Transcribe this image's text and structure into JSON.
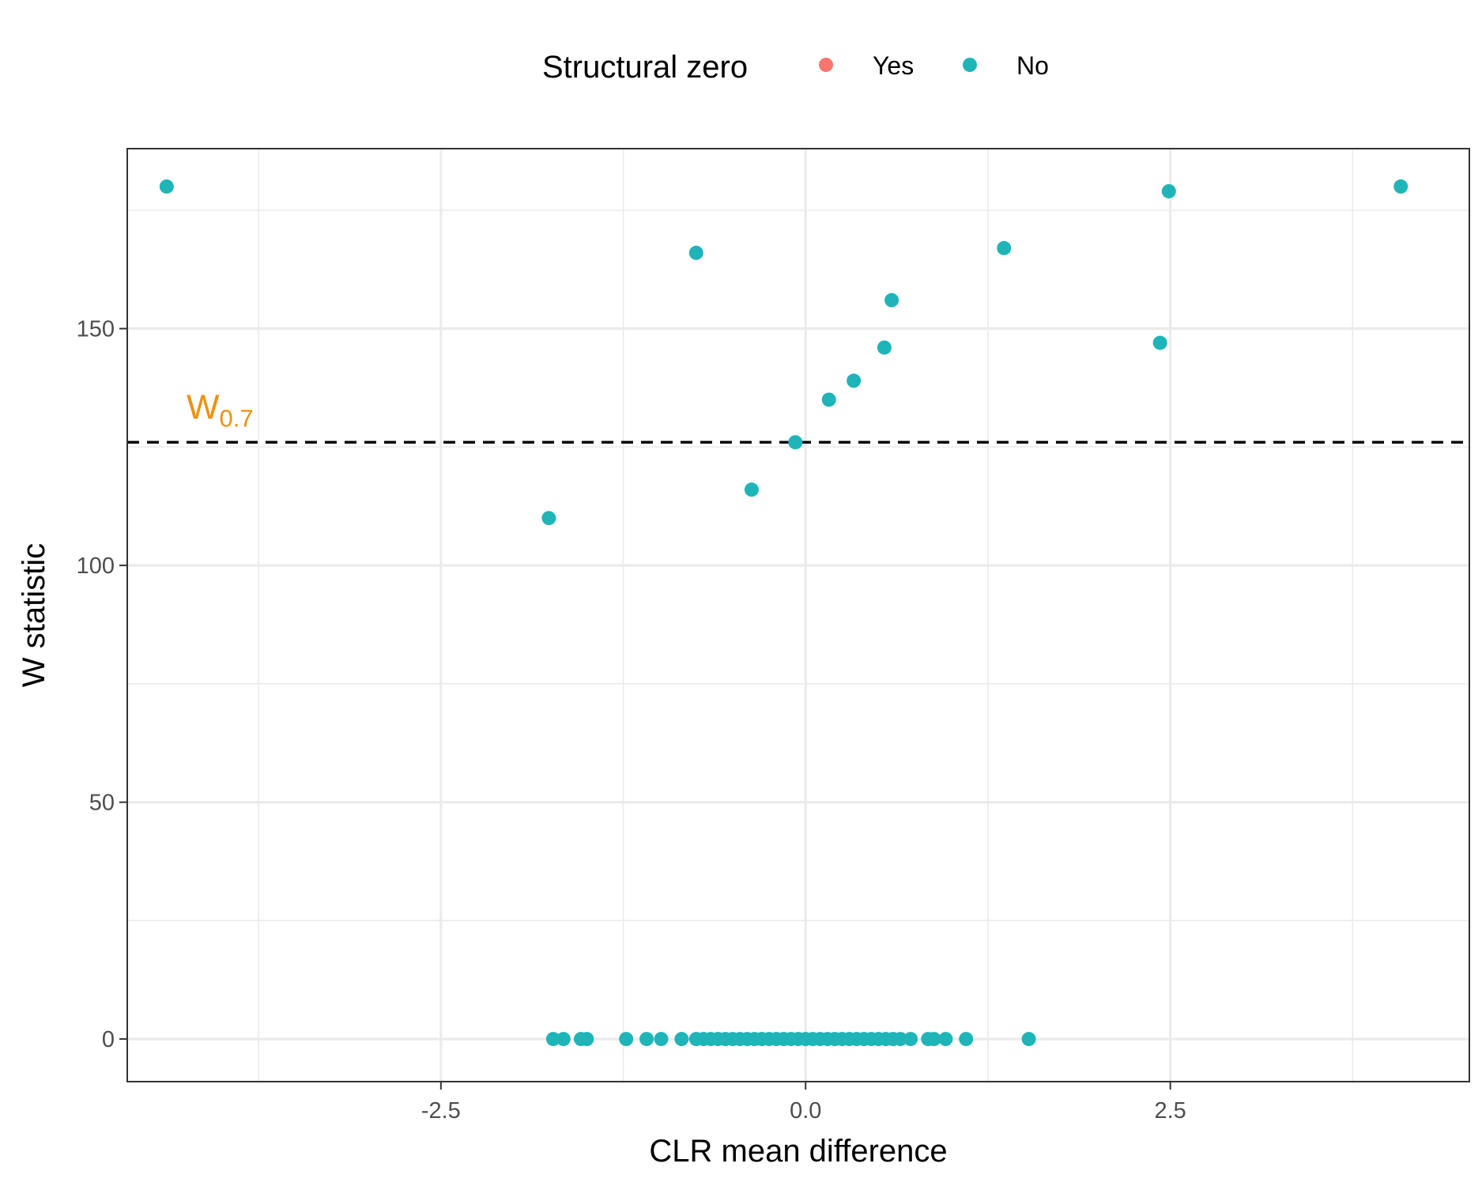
{
  "chart_data": {
    "type": "scatter",
    "title": "",
    "xlabel": "CLR mean difference",
    "ylabel": "W statistic",
    "xlim": [
      -4.65,
      4.55
    ],
    "ylim": [
      -9,
      188
    ],
    "x_ticks": [
      -2.5,
      0.0,
      2.5
    ],
    "x_tick_labels": [
      "-2.5",
      "0.0",
      "2.5"
    ],
    "y_ticks": [
      0,
      50,
      100,
      150
    ],
    "y_tick_labels": [
      "0",
      "50",
      "100",
      "150"
    ],
    "grid": true,
    "legend": {
      "title": "Structural zero",
      "position": "top",
      "entries": [
        {
          "label": "Yes",
          "color": "#F8766D"
        },
        {
          "label": "No",
          "color": "#1FB5B8"
        }
      ]
    },
    "threshold": {
      "y": 126,
      "style": "dashed",
      "label_main": "W",
      "label_sub": "0.7",
      "label_color": "#F0900A"
    },
    "series": [
      {
        "name": "No",
        "color": "#1FB5B8",
        "points": [
          {
            "x": -4.38,
            "y": 180
          },
          {
            "x": 4.08,
            "y": 180
          },
          {
            "x": 2.49,
            "y": 179
          },
          {
            "x": -0.75,
            "y": 166
          },
          {
            "x": 1.36,
            "y": 167
          },
          {
            "x": 0.59,
            "y": 156
          },
          {
            "x": 0.54,
            "y": 146
          },
          {
            "x": 2.43,
            "y": 147
          },
          {
            "x": 0.33,
            "y": 139
          },
          {
            "x": 0.16,
            "y": 135
          },
          {
            "x": -0.07,
            "y": 126
          },
          {
            "x": -0.37,
            "y": 116
          },
          {
            "x": -1.76,
            "y": 110
          },
          {
            "x": -1.73,
            "y": 0
          },
          {
            "x": -1.66,
            "y": 0
          },
          {
            "x": -1.54,
            "y": 0
          },
          {
            "x": -1.5,
            "y": 0
          },
          {
            "x": -1.23,
            "y": 0
          },
          {
            "x": -1.09,
            "y": 0
          },
          {
            "x": -0.99,
            "y": 0
          },
          {
            "x": -0.85,
            "y": 0
          },
          {
            "x": -0.75,
            "y": 0
          },
          {
            "x": -0.7,
            "y": 0
          },
          {
            "x": -0.65,
            "y": 0
          },
          {
            "x": -0.6,
            "y": 0
          },
          {
            "x": -0.55,
            "y": 0
          },
          {
            "x": -0.5,
            "y": 0
          },
          {
            "x": -0.45,
            "y": 0
          },
          {
            "x": -0.4,
            "y": 0
          },
          {
            "x": -0.35,
            "y": 0
          },
          {
            "x": -0.3,
            "y": 0
          },
          {
            "x": -0.25,
            "y": 0
          },
          {
            "x": -0.2,
            "y": 0
          },
          {
            "x": -0.15,
            "y": 0
          },
          {
            "x": -0.1,
            "y": 0
          },
          {
            "x": -0.05,
            "y": 0
          },
          {
            "x": 0.0,
            "y": 0
          },
          {
            "x": 0.05,
            "y": 0
          },
          {
            "x": 0.1,
            "y": 0
          },
          {
            "x": 0.15,
            "y": 0
          },
          {
            "x": 0.2,
            "y": 0
          },
          {
            "x": 0.25,
            "y": 0
          },
          {
            "x": 0.3,
            "y": 0
          },
          {
            "x": 0.35,
            "y": 0
          },
          {
            "x": 0.4,
            "y": 0
          },
          {
            "x": 0.45,
            "y": 0
          },
          {
            "x": 0.5,
            "y": 0
          },
          {
            "x": 0.55,
            "y": 0
          },
          {
            "x": 0.6,
            "y": 0
          },
          {
            "x": 0.65,
            "y": 0
          },
          {
            "x": 0.72,
            "y": 0
          },
          {
            "x": 0.84,
            "y": 0
          },
          {
            "x": 0.88,
            "y": 0
          },
          {
            "x": 0.96,
            "y": 0
          },
          {
            "x": 1.1,
            "y": 0
          },
          {
            "x": 1.53,
            "y": 0
          }
        ]
      }
    ]
  }
}
